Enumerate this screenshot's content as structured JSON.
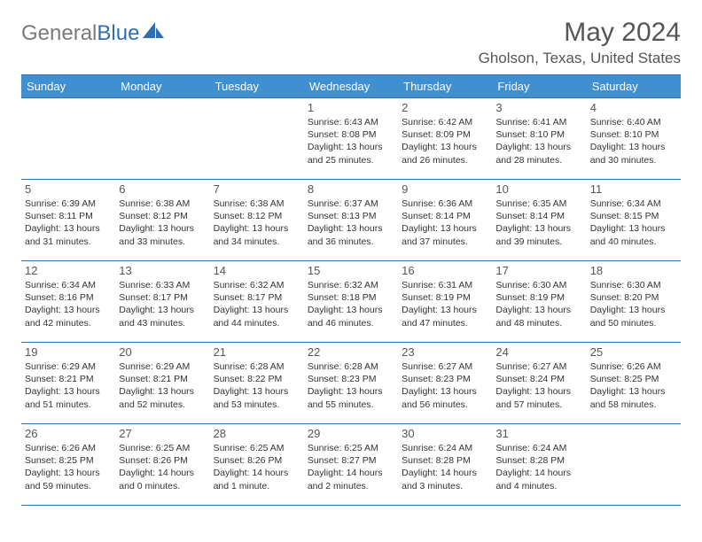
{
  "brand": {
    "text1": "General",
    "text2": "Blue",
    "icon_color": "#2f6fb0"
  },
  "title": "May 2024",
  "location": "Gholson, Texas, United States",
  "colors": {
    "header_bg": "#3f8fd1",
    "header_text": "#ffffff",
    "border": "#2f6fb0",
    "body_text": "#333333",
    "muted_text": "#555555",
    "background": "#ffffff"
  },
  "weekdays": [
    "Sunday",
    "Monday",
    "Tuesday",
    "Wednesday",
    "Thursday",
    "Friday",
    "Saturday"
  ],
  "weeks": [
    [
      null,
      null,
      null,
      {
        "n": "1",
        "sr": "6:43 AM",
        "ss": "8:08 PM",
        "dl": "13 hours and 25 minutes."
      },
      {
        "n": "2",
        "sr": "6:42 AM",
        "ss": "8:09 PM",
        "dl": "13 hours and 26 minutes."
      },
      {
        "n": "3",
        "sr": "6:41 AM",
        "ss": "8:10 PM",
        "dl": "13 hours and 28 minutes."
      },
      {
        "n": "4",
        "sr": "6:40 AM",
        "ss": "8:10 PM",
        "dl": "13 hours and 30 minutes."
      }
    ],
    [
      {
        "n": "5",
        "sr": "6:39 AM",
        "ss": "8:11 PM",
        "dl": "13 hours and 31 minutes."
      },
      {
        "n": "6",
        "sr": "6:38 AM",
        "ss": "8:12 PM",
        "dl": "13 hours and 33 minutes."
      },
      {
        "n": "7",
        "sr": "6:38 AM",
        "ss": "8:12 PM",
        "dl": "13 hours and 34 minutes."
      },
      {
        "n": "8",
        "sr": "6:37 AM",
        "ss": "8:13 PM",
        "dl": "13 hours and 36 minutes."
      },
      {
        "n": "9",
        "sr": "6:36 AM",
        "ss": "8:14 PM",
        "dl": "13 hours and 37 minutes."
      },
      {
        "n": "10",
        "sr": "6:35 AM",
        "ss": "8:14 PM",
        "dl": "13 hours and 39 minutes."
      },
      {
        "n": "11",
        "sr": "6:34 AM",
        "ss": "8:15 PM",
        "dl": "13 hours and 40 minutes."
      }
    ],
    [
      {
        "n": "12",
        "sr": "6:34 AM",
        "ss": "8:16 PM",
        "dl": "13 hours and 42 minutes."
      },
      {
        "n": "13",
        "sr": "6:33 AM",
        "ss": "8:17 PM",
        "dl": "13 hours and 43 minutes."
      },
      {
        "n": "14",
        "sr": "6:32 AM",
        "ss": "8:17 PM",
        "dl": "13 hours and 44 minutes."
      },
      {
        "n": "15",
        "sr": "6:32 AM",
        "ss": "8:18 PM",
        "dl": "13 hours and 46 minutes."
      },
      {
        "n": "16",
        "sr": "6:31 AM",
        "ss": "8:19 PM",
        "dl": "13 hours and 47 minutes."
      },
      {
        "n": "17",
        "sr": "6:30 AM",
        "ss": "8:19 PM",
        "dl": "13 hours and 48 minutes."
      },
      {
        "n": "18",
        "sr": "6:30 AM",
        "ss": "8:20 PM",
        "dl": "13 hours and 50 minutes."
      }
    ],
    [
      {
        "n": "19",
        "sr": "6:29 AM",
        "ss": "8:21 PM",
        "dl": "13 hours and 51 minutes."
      },
      {
        "n": "20",
        "sr": "6:29 AM",
        "ss": "8:21 PM",
        "dl": "13 hours and 52 minutes."
      },
      {
        "n": "21",
        "sr": "6:28 AM",
        "ss": "8:22 PM",
        "dl": "13 hours and 53 minutes."
      },
      {
        "n": "22",
        "sr": "6:28 AM",
        "ss": "8:23 PM",
        "dl": "13 hours and 55 minutes."
      },
      {
        "n": "23",
        "sr": "6:27 AM",
        "ss": "8:23 PM",
        "dl": "13 hours and 56 minutes."
      },
      {
        "n": "24",
        "sr": "6:27 AM",
        "ss": "8:24 PM",
        "dl": "13 hours and 57 minutes."
      },
      {
        "n": "25",
        "sr": "6:26 AM",
        "ss": "8:25 PM",
        "dl": "13 hours and 58 minutes."
      }
    ],
    [
      {
        "n": "26",
        "sr": "6:26 AM",
        "ss": "8:25 PM",
        "dl": "13 hours and 59 minutes."
      },
      {
        "n": "27",
        "sr": "6:25 AM",
        "ss": "8:26 PM",
        "dl": "14 hours and 0 minutes."
      },
      {
        "n": "28",
        "sr": "6:25 AM",
        "ss": "8:26 PM",
        "dl": "14 hours and 1 minute."
      },
      {
        "n": "29",
        "sr": "6:25 AM",
        "ss": "8:27 PM",
        "dl": "14 hours and 2 minutes."
      },
      {
        "n": "30",
        "sr": "6:24 AM",
        "ss": "8:28 PM",
        "dl": "14 hours and 3 minutes."
      },
      {
        "n": "31",
        "sr": "6:24 AM",
        "ss": "8:28 PM",
        "dl": "14 hours and 4 minutes."
      },
      null
    ]
  ],
  "labels": {
    "sunrise": "Sunrise:",
    "sunset": "Sunset:",
    "daylight": "Daylight:"
  }
}
